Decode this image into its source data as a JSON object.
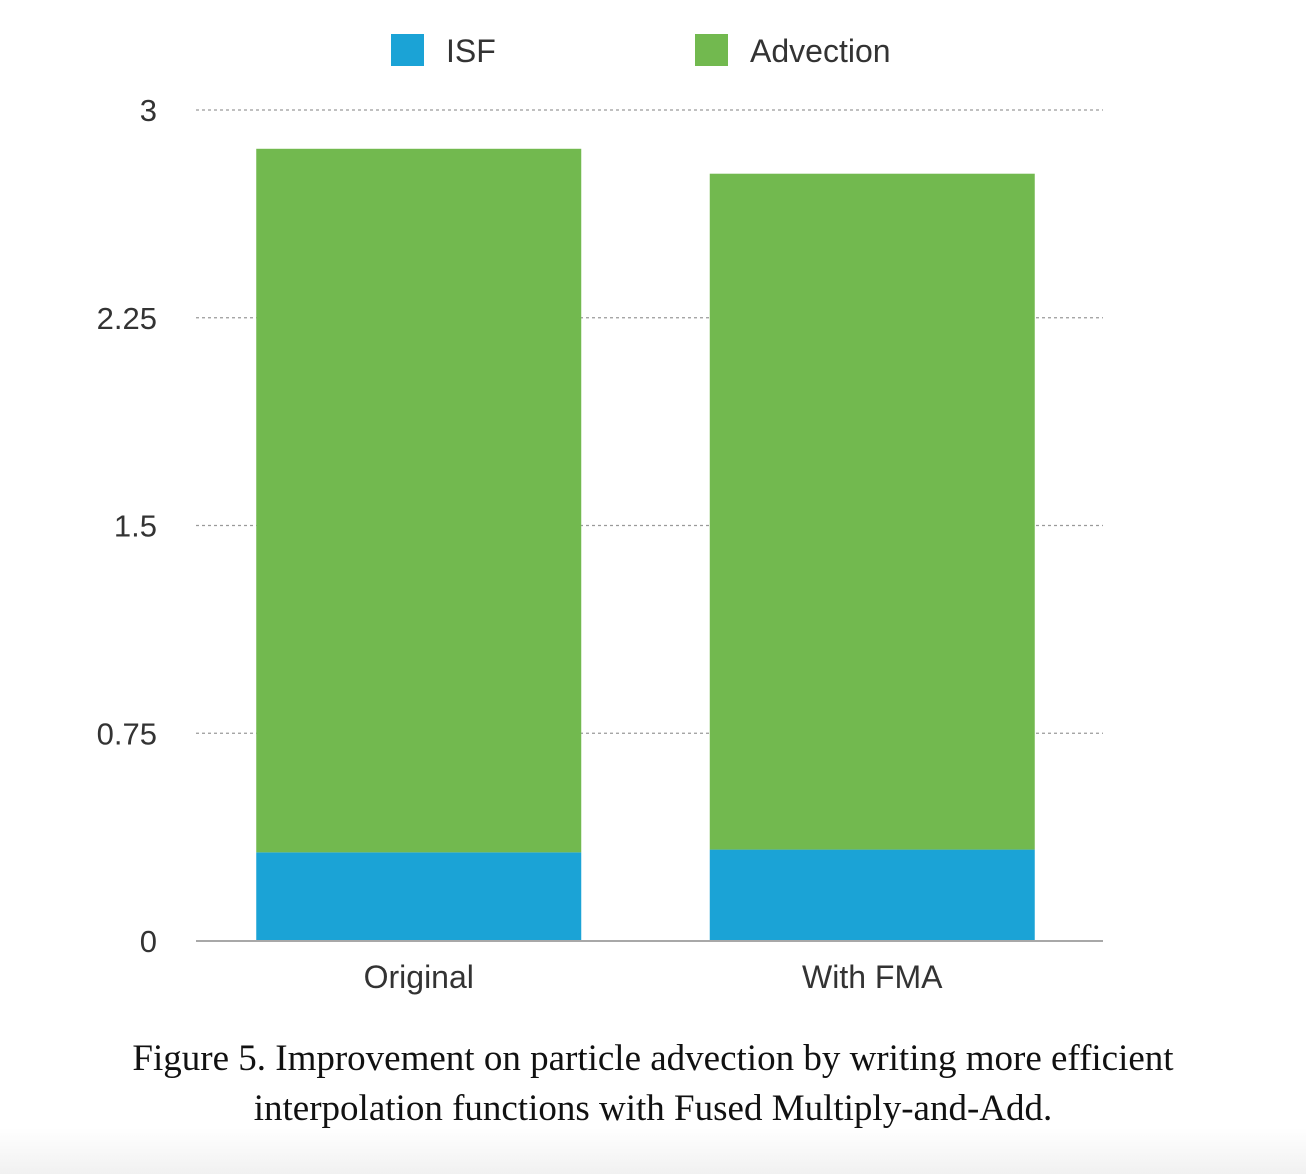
{
  "chart_data": {
    "type": "bar",
    "stacked": true,
    "categories": [
      "Original",
      "With FMA"
    ],
    "series": [
      {
        "name": "ISF",
        "values": [
          0.32,
          0.33
        ],
        "color": "#1ba3d6"
      },
      {
        "name": "Advection",
        "values": [
          2.54,
          2.44
        ],
        "color": "#72b94f"
      }
    ],
    "ylim": [
      0,
      3
    ],
    "yticks": [
      "0",
      "0.75",
      "1.5",
      "2.25",
      "3"
    ],
    "ytick_values": [
      0,
      0.75,
      1.5,
      2.25,
      3
    ],
    "grid": true,
    "legend_position": "top"
  },
  "caption": {
    "line1": "Figure 5. Improvement on particle advection by writing more efficient",
    "line2": "interpolation functions with Fused Multiply-and-Add."
  }
}
